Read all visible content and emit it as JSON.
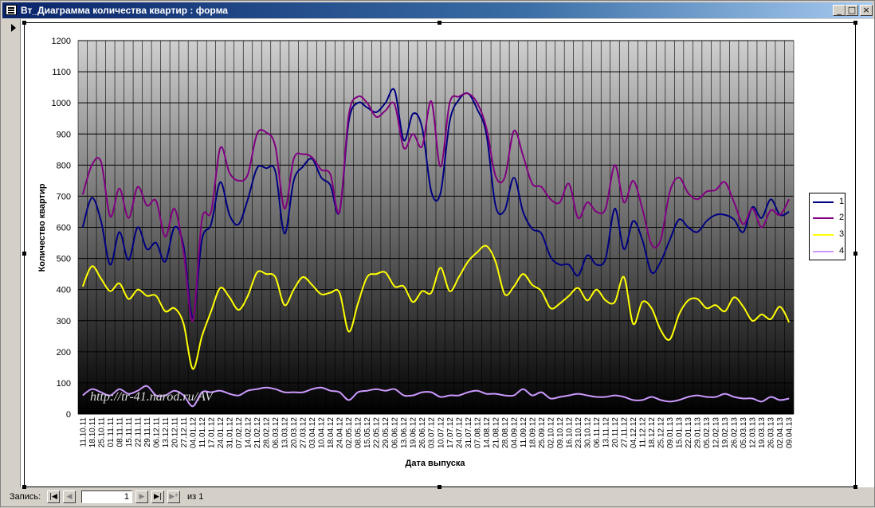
{
  "window": {
    "title": "Вт_Диаграмма количества квартир : форма",
    "buttons": {
      "minimize": "_",
      "maximize": "□",
      "close": "×"
    }
  },
  "status": {
    "record_label": "Запись:",
    "current_record": "1",
    "of_label": "из",
    "total_records": "1",
    "nav": {
      "first": "|◀",
      "prev": "◀",
      "next": "▶",
      "last": "▶|",
      "new": "▶*"
    }
  },
  "watermark": "http://tr-41.narod.ru/AV",
  "colors": {
    "series1": "#000080",
    "series2": "#800080",
    "series3": "#ffff00",
    "series4": "#cc99ff"
  },
  "chart_data": {
    "type": "line",
    "title": "",
    "xlabel": "Дата выпуска",
    "ylabel": "Количество квартир",
    "ylim": [
      0,
      1200
    ],
    "yticks": [
      0,
      100,
      200,
      300,
      400,
      500,
      600,
      700,
      800,
      900,
      1000,
      1100,
      1200
    ],
    "grid": true,
    "legend_position": "right",
    "categories": [
      "11.10.11",
      "18.10.11",
      "25.10.11",
      "01.11.11",
      "08.11.11",
      "15.11.11",
      "22.11.11",
      "29.11.11",
      "06.12.11",
      "13.12.11",
      "20.12.11",
      "27.12.11",
      "04.01.12",
      "11.01.12",
      "17.01.12",
      "24.01.12",
      "31.01.12",
      "07.02.12",
      "14.02.12",
      "21.02.12",
      "28.02.12",
      "06.03.12",
      "13.03.12",
      "20.03.12",
      "27.03.12",
      "03.04.12",
      "10.04.12",
      "18.04.12",
      "24.04.12",
      "02.05.12",
      "08.05.12",
      "15.05.12",
      "22.05.12",
      "29.05.12",
      "06.06.12",
      "13.06.12",
      "19.06.12",
      "26.06.12",
      "03.07.12",
      "10.07.12",
      "17.07.12",
      "24.07.12",
      "31.07.12",
      "07.08.12",
      "14.08.12",
      "21.08.12",
      "28.08.12",
      "04.09.12",
      "11.09.12",
      "18.09.12",
      "25.09.12",
      "02.10.12",
      "09.10.12",
      "16.10.12",
      "23.10.12",
      "30.10.12",
      "06.11.12",
      "13.11.12",
      "20.11.12",
      "27.11.12",
      "04.12.12",
      "11.12.12",
      "18.12.12",
      "25.12.12",
      "09.01.13",
      "15.01.13",
      "22.01.13",
      "29.01.13",
      "05.02.13",
      "12.02.13",
      "19.02.13",
      "26.02.13",
      "05.03.13",
      "12.03.13",
      "19.03.13",
      "26.03.13",
      "02.04.13",
      "09.04.13"
    ],
    "series": [
      {
        "name": "1",
        "values": [
          600,
          695,
          620,
          480,
          585,
          495,
          600,
          530,
          550,
          490,
          600,
          540,
          310,
          560,
          610,
          745,
          640,
          610,
          690,
          790,
          790,
          780,
          580,
          750,
          795,
          820,
          760,
          735,
          650,
          940,
          1000,
          985,
          970,
          1000,
          1040,
          880,
          965,
          920,
          715,
          710,
          940,
          1010,
          1030,
          980,
          900,
          670,
          655,
          760,
          650,
          595,
          580,
          505,
          480,
          480,
          445,
          510,
          480,
          500,
          660,
          530,
          620,
          560,
          455,
          490,
          560,
          625,
          600,
          585,
          620,
          640,
          640,
          625,
          585,
          665,
          630,
          690,
          640,
          650
        ]
      },
      {
        "name": "2",
        "values": [
          705,
          800,
          810,
          635,
          725,
          630,
          730,
          670,
          685,
          570,
          660,
          520,
          300,
          625,
          650,
          855,
          775,
          750,
          770,
          900,
          905,
          860,
          660,
          820,
          835,
          825,
          785,
          770,
          650,
          960,
          1020,
          1000,
          955,
          975,
          995,
          855,
          900,
          860,
          1005,
          795,
          1000,
          1020,
          1030,
          1000,
          920,
          765,
          760,
          910,
          830,
          740,
          730,
          690,
          680,
          740,
          630,
          680,
          650,
          660,
          800,
          680,
          750,
          660,
          545,
          560,
          715,
          760,
          710,
          690,
          715,
          720,
          745,
          680,
          610,
          660,
          600,
          655,
          640,
          690
        ]
      },
      {
        "name": "3",
        "values": [
          410,
          475,
          435,
          395,
          420,
          370,
          400,
          380,
          380,
          330,
          340,
          290,
          145,
          250,
          330,
          405,
          375,
          335,
          380,
          455,
          450,
          440,
          350,
          400,
          440,
          415,
          385,
          390,
          390,
          265,
          355,
          440,
          450,
          455,
          410,
          410,
          360,
          395,
          390,
          470,
          395,
          440,
          490,
          520,
          540,
          490,
          385,
          410,
          450,
          415,
          395,
          340,
          355,
          380,
          405,
          365,
          400,
          365,
          360,
          440,
          290,
          360,
          340,
          270,
          240,
          320,
          365,
          370,
          340,
          350,
          330,
          375,
          345,
          300,
          320,
          305,
          345,
          295
        ]
      },
      {
        "name": "4",
        "values": [
          60,
          80,
          70,
          60,
          80,
          65,
          75,
          90,
          60,
          60,
          75,
          60,
          25,
          70,
          70,
          75,
          65,
          60,
          75,
          80,
          85,
          80,
          70,
          70,
          70,
          80,
          85,
          75,
          70,
          45,
          70,
          75,
          80,
          75,
          80,
          60,
          60,
          70,
          70,
          55,
          60,
          60,
          70,
          75,
          65,
          65,
          60,
          60,
          80,
          60,
          70,
          50,
          55,
          60,
          65,
          60,
          55,
          55,
          60,
          55,
          45,
          45,
          55,
          45,
          40,
          45,
          55,
          60,
          55,
          55,
          65,
          55,
          50,
          50,
          40,
          55,
          45,
          50
        ]
      }
    ]
  }
}
